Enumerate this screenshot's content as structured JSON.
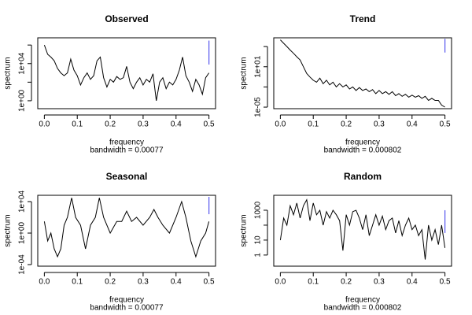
{
  "chart_data": [
    {
      "type": "line",
      "title": "Observed",
      "xlabel": "frequency",
      "sublabel": "bandwidth = 0.00077",
      "ylabel": "spectrum",
      "log_y": true,
      "color": "#000000",
      "ci_color": "#5555ee",
      "x": [
        0,
        0.01,
        0.02,
        0.03,
        0.04,
        0.05,
        0.06,
        0.07,
        0.08,
        0.09,
        0.1,
        0.11,
        0.12,
        0.13,
        0.14,
        0.15,
        0.16,
        0.17,
        0.18,
        0.19,
        0.2,
        0.21,
        0.22,
        0.23,
        0.24,
        0.25,
        0.26,
        0.27,
        0.28,
        0.29,
        0.3,
        0.31,
        0.32,
        0.33,
        0.34,
        0.35,
        0.36,
        0.37,
        0.38,
        0.39,
        0.4,
        0.41,
        0.42,
        0.43,
        0.44,
        0.45,
        0.46,
        0.47,
        0.48,
        0.49,
        0.5
      ],
      "values": [
        1000000,
        100000,
        50000,
        20000,
        3000,
        1000,
        500,
        1000,
        30000,
        2000,
        500,
        50,
        300,
        1000,
        200,
        500,
        20000,
        50000,
        300,
        30,
        200,
        100,
        400,
        200,
        300,
        5000,
        100,
        20,
        100,
        300,
        50,
        200,
        100,
        800,
        1,
        100,
        300,
        20,
        100,
        50,
        200,
        2000,
        50000,
        500,
        100,
        10,
        200,
        50,
        5,
        300,
        1000
      ],
      "ci": {
        "x": 0.5,
        "low": 8000,
        "high": 3000000
      },
      "xlim": [
        -0.02,
        0.52
      ],
      "xticks": [
        {
          "value": 0,
          "label": "0.0"
        },
        0.1,
        0.2,
        0.3,
        0.4,
        0.5
      ],
      "ylim": [
        0.14,
        6000000
      ],
      "yticks": [
        {
          "value": 1,
          "label": "1e+00"
        },
        {
          "value": 10000,
          "label": "1e+04"
        }
      ],
      "yticks_unlabeled": [
        100,
        1000000
      ]
    },
    {
      "type": "line",
      "title": "Trend",
      "xlabel": "frequency",
      "sublabel": "bandwidth = 0.000802",
      "ylabel": "spectrum",
      "log_y": true,
      "color": "#000000",
      "ci_color": "#5555ee",
      "x": [
        0,
        0.01,
        0.02,
        0.03,
        0.04,
        0.05,
        0.06,
        0.07,
        0.08,
        0.09,
        0.1,
        0.11,
        0.12,
        0.13,
        0.14,
        0.15,
        0.16,
        0.17,
        0.18,
        0.19,
        0.2,
        0.21,
        0.22,
        0.23,
        0.24,
        0.25,
        0.26,
        0.27,
        0.28,
        0.29,
        0.3,
        0.31,
        0.32,
        0.33,
        0.34,
        0.35,
        0.36,
        0.37,
        0.38,
        0.39,
        0.4,
        0.41,
        0.42,
        0.43,
        0.44,
        0.45,
        0.46,
        0.47,
        0.48,
        0.49,
        0.5
      ],
      "values": [
        100000,
        30000,
        10000,
        3000,
        1000,
        300,
        100,
        10,
        1,
        0.3,
        0.1,
        0.05,
        0.2,
        0.03,
        0.1,
        0.02,
        0.05,
        0.01,
        0.03,
        0.01,
        0.02,
        0.005,
        0.01,
        0.003,
        0.008,
        0.003,
        0.005,
        0.002,
        0.004,
        0.001,
        0.003,
        0.001,
        0.002,
        0.0008,
        0.002,
        0.0005,
        0.001,
        0.0004,
        0.0008,
        0.0003,
        0.0006,
        0.0003,
        0.0005,
        0.0002,
        0.0004,
        0.0001,
        0.0002,
        0.0001,
        0.0001,
        2e-05,
        1e-05
      ],
      "ci": {
        "x": 0.5,
        "low": 1300,
        "high": 140000
      },
      "xlim": [
        -0.02,
        0.52
      ],
      "xticks": [
        {
          "value": 0,
          "label": "0.0"
        },
        0.1,
        0.2,
        0.3,
        0.4,
        0.5
      ],
      "ylim": [
        5.9e-06,
        200000
      ],
      "yticks": [
        {
          "value": 1e-05,
          "label": "1e-05"
        },
        {
          "value": 10,
          "label": "1e+01"
        }
      ],
      "yticks_unlabeled": [
        0.01,
        10000
      ]
    },
    {
      "type": "line",
      "title": "Seasonal",
      "xlabel": "frequency",
      "sublabel": "bandwidth = 0.00077",
      "ylabel": "spectrum",
      "log_y": true,
      "color": "#000000",
      "ci_color": "#5555ee",
      "x": [
        0,
        0.01,
        0.02,
        0.03,
        0.04,
        0.05,
        0.06,
        0.07,
        0.083,
        0.095,
        0.11,
        0.125,
        0.14,
        0.155,
        0.167,
        0.18,
        0.2,
        0.22,
        0.235,
        0.25,
        0.265,
        0.28,
        0.3,
        0.32,
        0.333,
        0.345,
        0.36,
        0.38,
        0.4,
        0.417,
        0.43,
        0.445,
        0.46,
        0.475,
        0.49,
        0.5
      ],
      "values": [
        30,
        0.1,
        1,
        0.01,
        0.001,
        0.01,
        10,
        100,
        30000,
        100,
        10,
        0.01,
        10,
        100,
        30000,
        100,
        1,
        30,
        30,
        600,
        30,
        100,
        10,
        100,
        1000,
        100,
        10,
        1,
        100,
        10000,
        100,
        0.1,
        0.001,
        0.1,
        1,
        30
      ],
      "ci": {
        "x": 0.5,
        "low": 250,
        "high": 40000
      },
      "xlim": [
        -0.02,
        0.52
      ],
      "xticks": [
        {
          "value": 0,
          "label": "0.0"
        },
        0.1,
        0.2,
        0.3,
        0.4,
        0.5
      ],
      "ylim": [
        6.3e-05,
        63000
      ],
      "yticks": [
        {
          "value": 0.0001,
          "label": "1e-04"
        },
        {
          "value": 1,
          "label": "1e+00"
        },
        {
          "value": 10000,
          "label": "1e+04"
        }
      ],
      "yticks_unlabeled": []
    },
    {
      "type": "line",
      "title": "Random",
      "xlabel": "frequency",
      "sublabel": "bandwidth = 0.000802",
      "ylabel": "spectrum",
      "log_y": true,
      "color": "#000000",
      "ci_color": "#5555ee",
      "x": [
        0,
        0.01,
        0.02,
        0.03,
        0.04,
        0.05,
        0.06,
        0.07,
        0.08,
        0.09,
        0.1,
        0.11,
        0.12,
        0.13,
        0.14,
        0.15,
        0.16,
        0.17,
        0.18,
        0.19,
        0.2,
        0.21,
        0.22,
        0.23,
        0.24,
        0.25,
        0.26,
        0.27,
        0.28,
        0.29,
        0.3,
        0.31,
        0.32,
        0.33,
        0.34,
        0.35,
        0.36,
        0.37,
        0.38,
        0.39,
        0.4,
        0.41,
        0.42,
        0.43,
        0.44,
        0.45,
        0.46,
        0.47,
        0.48,
        0.49,
        0.5
      ],
      "values": [
        10,
        300,
        100,
        2000,
        500,
        3000,
        300,
        2000,
        5000,
        200,
        3000,
        500,
        1000,
        100,
        800,
        300,
        1000,
        500,
        200,
        2,
        500,
        100,
        800,
        1000,
        300,
        50,
        500,
        20,
        100,
        500,
        100,
        400,
        50,
        200,
        300,
        30,
        200,
        20,
        100,
        300,
        50,
        100,
        20,
        50,
        0.5,
        100,
        10,
        50,
        5,
        100,
        3
      ],
      "ci": {
        "x": 0.5,
        "low": 30,
        "high": 1000
      },
      "xlim": [
        -0.02,
        0.52
      ],
      "xticks": [
        {
          "value": 0,
          "label": "0.0"
        },
        0.1,
        0.2,
        0.3,
        0.4,
        0.5
      ],
      "ylim": [
        0.18,
        10000
      ],
      "yticks": [
        1,
        10,
        1000
      ],
      "yticks_unlabeled": [
        100
      ]
    }
  ]
}
